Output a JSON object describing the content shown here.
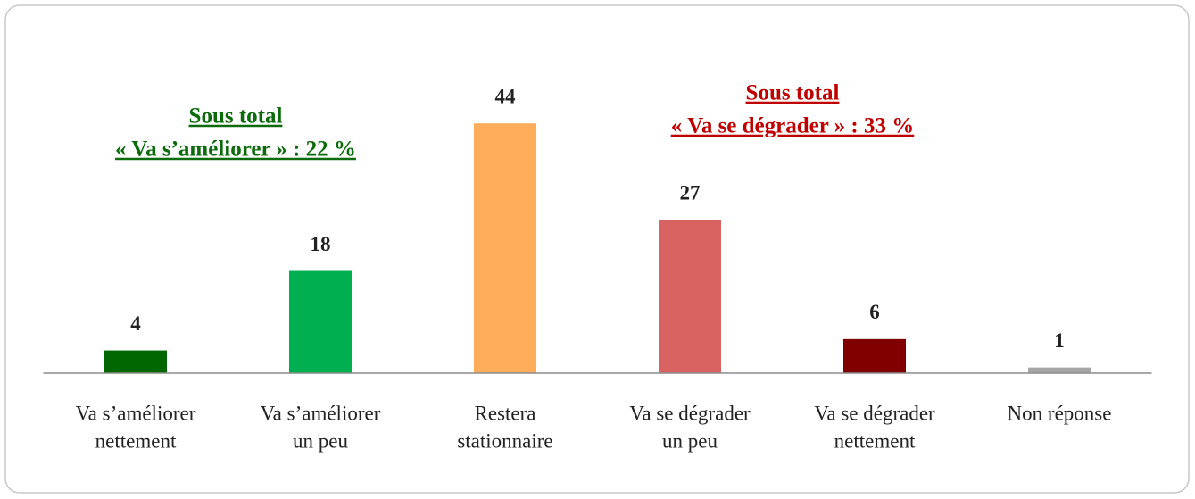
{
  "chart_data": {
    "type": "bar",
    "categories": [
      [
        "Va s’améliorer",
        "nettement"
      ],
      [
        "Va s’améliorer",
        "un peu"
      ],
      [
        "Restera",
        "stationnaire"
      ],
      [
        "Va se dégrader",
        "un peu"
      ],
      [
        "Va se dégrader",
        "nettement"
      ],
      [
        "Non réponse"
      ]
    ],
    "values": [
      4,
      18,
      44,
      27,
      6,
      1
    ],
    "colors": [
      "#006600",
      "#00b050",
      "#ffad5b",
      "#d96262",
      "#800000",
      "#a6a6a6"
    ],
    "ylim": [
      0,
      50
    ],
    "annotations": [
      {
        "lines": [
          "Sous total",
          "« Va s’améliorer » : 22 %"
        ],
        "color": "#0b6b0b"
      },
      {
        "lines": [
          "Sous total",
          "« Va se dégrader » : 33 %"
        ],
        "color": "#c00000"
      }
    ]
  }
}
